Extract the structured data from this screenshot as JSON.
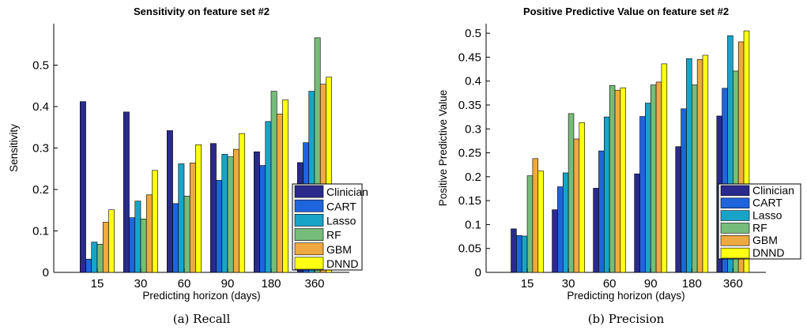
{
  "chart_data": [
    {
      "type": "bar",
      "title": "Sensitivity on feature set #2",
      "xlabel": "Predicting horizon (days)",
      "ylabel": "Sensitivity",
      "caption": "(a) Recall",
      "categories": [
        "15",
        "30",
        "60",
        "90",
        "180",
        "360"
      ],
      "ylim": [
        0,
        0.6
      ],
      "yticks": [
        "0",
        "0.1",
        "0.2",
        "0.3",
        "0.4",
        "0.5"
      ],
      "legend": "bottom-right",
      "series": [
        {
          "name": "Clinician",
          "color": "#2a2a8c",
          "values": [
            0.412,
            0.387,
            0.342,
            0.311,
            0.291,
            0.265
          ]
        },
        {
          "name": "CART",
          "color": "#1e64dc",
          "values": [
            0.032,
            0.132,
            0.166,
            0.222,
            0.258,
            0.313
          ]
        },
        {
          "name": "Lasso",
          "color": "#18a4c8",
          "values": [
            0.073,
            0.172,
            0.262,
            0.285,
            0.364,
            0.437
          ]
        },
        {
          "name": "RF",
          "color": "#76bc7a",
          "values": [
            0.068,
            0.129,
            0.184,
            0.279,
            0.437,
            0.566
          ]
        },
        {
          "name": "GBM",
          "color": "#eeaa40",
          "values": [
            0.121,
            0.187,
            0.264,
            0.297,
            0.382,
            0.454
          ]
        },
        {
          "name": "DNND",
          "color": "#ffff14",
          "values": [
            0.151,
            0.246,
            0.308,
            0.335,
            0.416,
            0.471
          ]
        }
      ]
    },
    {
      "type": "bar",
      "title": "Positive Predictive Value on feature set #2",
      "xlabel": "Predicting horizon (days)",
      "ylabel": "Positive Predictive Value",
      "caption": "(b) Precision",
      "categories": [
        "15",
        "30",
        "60",
        "90",
        "180",
        "360"
      ],
      "ylim": [
        0,
        0.52
      ],
      "yticks": [
        "0",
        "0.05",
        "0.1",
        "0.15",
        "0.2",
        "0.25",
        "0.3",
        "0.35",
        "0.4",
        "0.45",
        "0.5"
      ],
      "legend": "bottom-right",
      "series": [
        {
          "name": "Clinician",
          "color": "#2a2a8c",
          "values": [
            0.091,
            0.131,
            0.176,
            0.206,
            0.263,
            0.327
          ]
        },
        {
          "name": "CART",
          "color": "#1e64dc",
          "values": [
            0.077,
            0.179,
            0.254,
            0.326,
            0.342,
            0.385
          ]
        },
        {
          "name": "Lasso",
          "color": "#18a4c8",
          "values": [
            0.076,
            0.208,
            0.325,
            0.354,
            0.447,
            0.495
          ]
        },
        {
          "name": "RF",
          "color": "#76bc7a",
          "values": [
            0.202,
            0.332,
            0.391,
            0.392,
            0.392,
            0.421
          ]
        },
        {
          "name": "GBM",
          "color": "#eeaa40",
          "values": [
            0.238,
            0.279,
            0.381,
            0.398,
            0.445,
            0.482
          ]
        },
        {
          "name": "DNND",
          "color": "#ffff14",
          "values": [
            0.212,
            0.313,
            0.386,
            0.436,
            0.454,
            0.505
          ]
        }
      ]
    }
  ]
}
